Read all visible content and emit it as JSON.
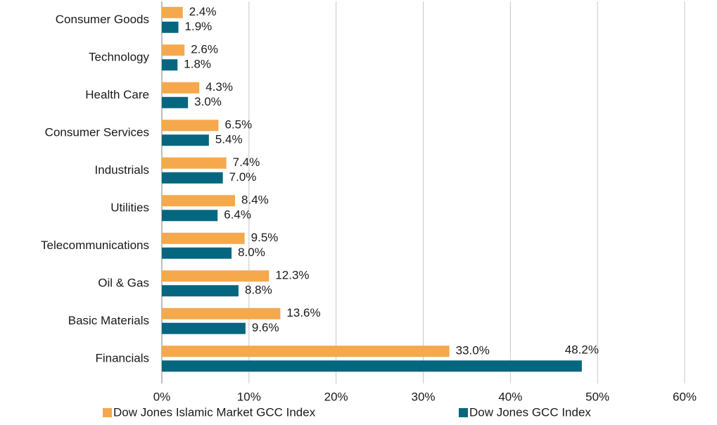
{
  "chart_data": {
    "type": "hbar",
    "categories": [
      "Consumer Goods",
      "Technology",
      "Health Care",
      "Consumer Services",
      "Industrials",
      "Utilities",
      "Telecommunications",
      "Oil & Gas",
      "Basic Materials",
      "Financials"
    ],
    "series": [
      {
        "name": "Dow Jones Islamic Market GCC Index",
        "color": "#f5a84c",
        "values": [
          2.4,
          2.6,
          4.3,
          6.5,
          7.4,
          8.4,
          9.5,
          12.3,
          13.6,
          33.0
        ],
        "value_labels": [
          "2.4%",
          "2.6%",
          "4.3%",
          "6.5%",
          "7.4%",
          "8.4%",
          "9.5%",
          "12.3%",
          "13.6%",
          "33.0%"
        ]
      },
      {
        "name": "Dow Jones GCC Index",
        "color": "#05677f",
        "values": [
          1.9,
          1.8,
          3.0,
          5.4,
          7.0,
          6.4,
          8.0,
          8.8,
          9.6,
          48.2
        ],
        "value_labels": [
          "1.9%",
          "1.8%",
          "3.0%",
          "5.4%",
          "7.0%",
          "6.4%",
          "8.0%",
          "8.8%",
          "9.6%",
          "48.2%"
        ]
      }
    ],
    "xlim": [
      0,
      60
    ],
    "xticks": [
      {
        "value": 0,
        "label": "0%"
      },
      {
        "value": 10,
        "label": "10%"
      },
      {
        "value": 20,
        "label": "20%"
      },
      {
        "value": 30,
        "label": "30%"
      },
      {
        "value": 40,
        "label": "40%"
      },
      {
        "value": 50,
        "label": "50%"
      },
      {
        "value": 60,
        "label": "60%"
      }
    ],
    "grid": true,
    "legend": "bottom"
  }
}
